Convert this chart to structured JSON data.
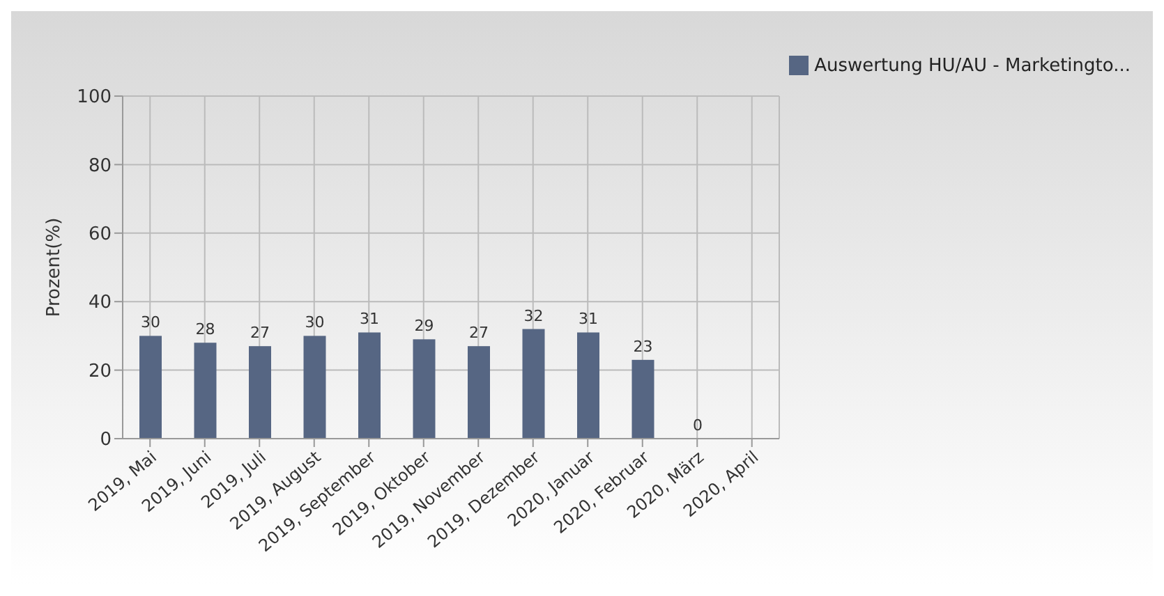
{
  "chart_data": {
    "type": "bar",
    "ylabel": "Prozent(%)",
    "categories": [
      "2019, Mai",
      "2019, Juni",
      "2019, Juli",
      "2019, August",
      "2019, September",
      "2019, Oktober",
      "2019, November",
      "2019, Dezember",
      "2020, Januar",
      "2020, Februar",
      "2020, März",
      "2020, April"
    ],
    "series": [
      {
        "name": "Auswertung HU/AU - Marketingto...",
        "color": "#566683",
        "values": [
          30,
          28,
          27,
          30,
          31,
          29,
          27,
          32,
          31,
          23,
          0,
          null
        ]
      }
    ],
    "ylim": [
      0,
      100
    ],
    "yticks": [
      0,
      20,
      40,
      60,
      80,
      100
    ],
    "grid": true,
    "legend": "top right",
    "data_labels": true
  }
}
